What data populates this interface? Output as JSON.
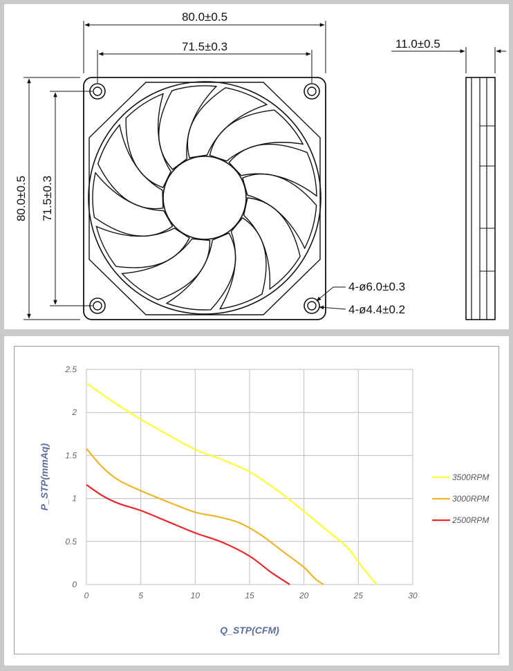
{
  "drawing": {
    "dim_width_outer": "80.0±0.5",
    "dim_width_holes": "71.5±0.3",
    "dim_height_outer": "80.0±0.5",
    "dim_height_holes": "71.5±0.3",
    "dim_thickness": "11.0±0.5",
    "hole_outer_note": "4-ø6.0±0.3",
    "hole_inner_note": "4-ø4.4±0.2",
    "blade_count": 13
  },
  "chart_data": {
    "type": "line",
    "xlabel": "Q_STP(CFM)",
    "ylabel": "P_STP(mmAq)",
    "xlim": [
      0,
      30
    ],
    "ylim": [
      0,
      2.5
    ],
    "x_ticks": [
      "0",
      "5",
      "10",
      "15",
      "20",
      "25",
      "30"
    ],
    "y_ticks": [
      "0",
      "0.5",
      "1",
      "1.5",
      "2",
      "2.5"
    ],
    "grid": true,
    "legend_position": "right",
    "series": [
      {
        "name": "3500RPM",
        "color": "#ffff33",
        "x": [
          0,
          2.5,
          5,
          7.5,
          10,
          12.5,
          15,
          17.5,
          20,
          22.5,
          24,
          25.5,
          26.7
        ],
        "y": [
          2.34,
          2.12,
          1.92,
          1.74,
          1.57,
          1.45,
          1.31,
          1.1,
          0.85,
          0.59,
          0.43,
          0.18,
          0
        ]
      },
      {
        "name": "3000RPM",
        "color": "#f0b429",
        "x": [
          0,
          1.5,
          3,
          5,
          7.5,
          10,
          12,
          14,
          16,
          18,
          20,
          21,
          21.8
        ],
        "y": [
          1.58,
          1.36,
          1.21,
          1.09,
          0.96,
          0.84,
          0.79,
          0.72,
          0.58,
          0.39,
          0.2,
          0.07,
          0
        ]
      },
      {
        "name": "2500RPM",
        "color": "#e8282b",
        "x": [
          0,
          1.5,
          3,
          5,
          7.5,
          10,
          12.5,
          15,
          17,
          18.7
        ],
        "y": [
          1.16,
          1.03,
          0.94,
          0.86,
          0.73,
          0.6,
          0.49,
          0.33,
          0.14,
          0
        ]
      }
    ]
  }
}
